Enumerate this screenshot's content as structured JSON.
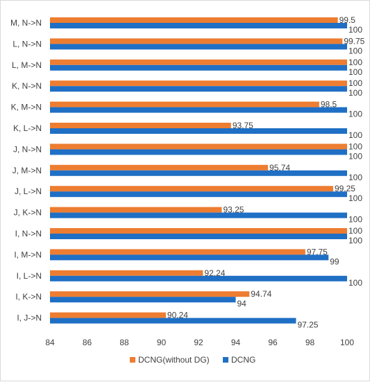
{
  "chart_data": {
    "type": "bar",
    "orientation": "horizontal",
    "title": "",
    "xlabel": "",
    "ylabel": "",
    "xlim": [
      84,
      100
    ],
    "x_ticks": [
      "84",
      "86",
      "88",
      "90",
      "92",
      "94",
      "96",
      "98",
      "100"
    ],
    "grid": false,
    "legend_position": "bottom",
    "categories": [
      "I, J->N",
      "I, K->N",
      "I, L->N",
      "I, M->N",
      "I, N->N",
      "J, K->N",
      "J, L->N",
      "J, M->N",
      "J, N->N",
      "K, L->N",
      "K, M->N",
      "K, N->N",
      "L, M->N",
      "L, N->N",
      "M, N->N"
    ],
    "series": [
      {
        "name": "DCNG(without DG)",
        "color": "#ED7D31",
        "values": [
          90.24,
          94.74,
          92.24,
          97.75,
          100,
          93.25,
          99.25,
          95.74,
          100,
          93.75,
          98.5,
          100,
          100,
          99.75,
          99.5
        ],
        "labels": [
          "90.24",
          "94.74",
          "92.24",
          "97.75",
          "100",
          "93.25",
          "99.25",
          "95.74",
          "100",
          "93.75",
          "98.5",
          "100",
          "100",
          "99.75",
          "99.5"
        ]
      },
      {
        "name": "DCNG",
        "color": "#1F6FC5",
        "values": [
          97.25,
          94,
          100,
          99,
          100,
          100,
          100,
          100,
          100,
          100,
          100,
          100,
          100,
          100,
          100
        ],
        "labels": [
          "97.25",
          "94",
          "100",
          "99",
          "100",
          "100",
          "100",
          "100",
          "100",
          "100",
          "100",
          "100",
          "100",
          "100",
          "100"
        ]
      }
    ]
  }
}
